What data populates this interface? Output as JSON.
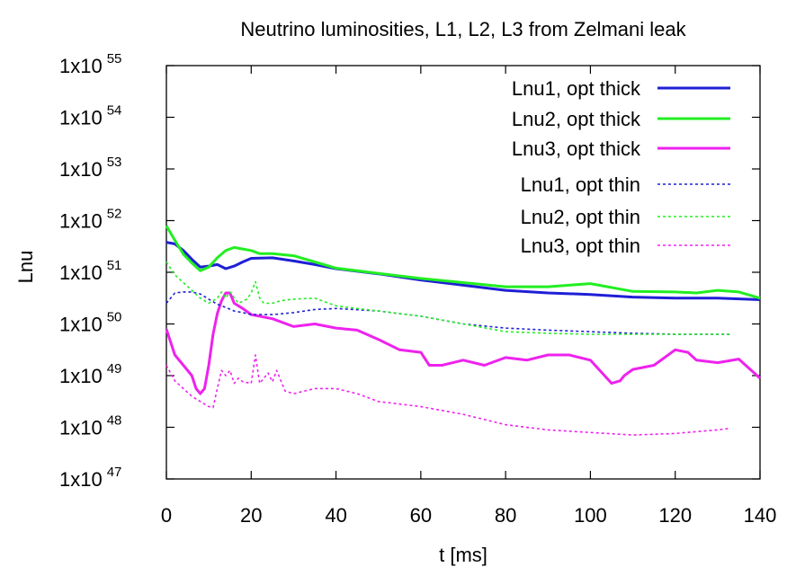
{
  "chart_data": {
    "type": "line",
    "title": "Neutrino luminosities, L1, L2, L3 from Zelmani leak",
    "xlabel": "t [ms]",
    "ylabel": "Lnu",
    "xlim": [
      0,
      140
    ],
    "ylim_log10": [
      47,
      55
    ],
    "y_scale": "log",
    "x_ticks": [
      0,
      20,
      40,
      60,
      80,
      100,
      120,
      140
    ],
    "y_ticks": [
      {
        "base": "1x10",
        "exp": "47"
      },
      {
        "base": "1x10",
        "exp": "48"
      },
      {
        "base": "1x10",
        "exp": "49"
      },
      {
        "base": "1x10",
        "exp": "50"
      },
      {
        "base": "1x10",
        "exp": "51"
      },
      {
        "base": "1x10",
        "exp": "52"
      },
      {
        "base": "1x10",
        "exp": "53"
      },
      {
        "base": "1x10",
        "exp": "54"
      },
      {
        "base": "1x10",
        "exp": "55"
      }
    ],
    "legend_position": "top-right",
    "grid": false,
    "series": [
      {
        "name": "Lnu1, opt thick",
        "color": "#1f1fd6",
        "style": "solid",
        "x": [
          0,
          2,
          4,
          6,
          8,
          10,
          12,
          14,
          16,
          18,
          20,
          25,
          30,
          35,
          40,
          50,
          60,
          70,
          80,
          90,
          100,
          110,
          120,
          130,
          140
        ],
        "log10_y": [
          51.58,
          51.55,
          51.42,
          51.25,
          51.1,
          51.12,
          51.15,
          51.07,
          51.12,
          51.2,
          51.27,
          51.28,
          51.22,
          51.15,
          51.07,
          50.97,
          50.85,
          50.75,
          50.65,
          50.6,
          50.57,
          50.52,
          50.5,
          50.5,
          50.47
        ]
      },
      {
        "name": "Lnu2, opt thick",
        "color": "#22ee22",
        "style": "solid",
        "x": [
          0,
          2,
          4,
          6,
          8,
          10,
          12,
          14,
          16,
          18,
          20,
          22,
          25,
          30,
          35,
          40,
          50,
          60,
          70,
          80,
          90,
          100,
          110,
          120,
          125,
          130,
          135,
          140
        ],
        "log10_y": [
          51.9,
          51.62,
          51.35,
          51.18,
          51.03,
          51.1,
          51.28,
          51.42,
          51.48,
          51.45,
          51.42,
          51.36,
          51.36,
          51.32,
          51.2,
          51.08,
          50.98,
          50.88,
          50.8,
          50.72,
          50.72,
          50.78,
          50.63,
          50.62,
          50.6,
          50.65,
          50.62,
          50.5
        ]
      },
      {
        "name": "Lnu3, opt thick",
        "color": "#ee22ee",
        "style": "solid",
        "x": [
          0,
          2,
          4,
          6,
          7,
          8,
          9,
          10,
          11,
          12,
          13,
          14,
          15,
          16,
          18,
          20,
          25,
          30,
          35,
          40,
          45,
          50,
          55,
          60,
          62,
          65,
          70,
          75,
          80,
          85,
          90,
          95,
          100,
          105,
          107,
          108,
          110,
          115,
          120,
          123,
          125,
          130,
          135,
          140
        ],
        "log10_y": [
          49.9,
          49.4,
          49.2,
          49.0,
          48.75,
          48.65,
          48.75,
          49.2,
          49.8,
          50.2,
          50.45,
          50.6,
          50.6,
          50.4,
          50.3,
          50.18,
          50.1,
          49.95,
          50.0,
          49.92,
          49.88,
          49.7,
          49.5,
          49.45,
          49.2,
          49.2,
          49.3,
          49.2,
          49.35,
          49.3,
          49.4,
          49.4,
          49.3,
          48.85,
          48.9,
          49.0,
          49.12,
          49.2,
          49.5,
          49.45,
          49.3,
          49.25,
          49.32,
          48.95
        ]
      },
      {
        "name": "Lnu1, opt thin",
        "color": "#1f1fd6",
        "style": "dotted",
        "x": [
          0,
          2,
          4,
          6,
          8,
          10,
          12,
          14,
          16,
          18,
          20,
          25,
          30,
          35,
          40,
          50,
          60,
          70,
          80,
          90,
          100,
          110,
          120,
          130,
          133
        ],
        "log10_y": [
          50.4,
          50.6,
          50.62,
          50.62,
          50.58,
          50.48,
          50.38,
          50.32,
          50.25,
          50.22,
          50.18,
          50.18,
          50.22,
          50.28,
          50.3,
          50.25,
          50.15,
          50.0,
          49.92,
          49.88,
          49.85,
          49.82,
          49.8,
          49.8,
          49.8
        ]
      },
      {
        "name": "Lnu2, opt thin",
        "color": "#22ee22",
        "style": "dotted",
        "x": [
          0,
          2,
          4,
          6,
          8,
          10,
          12,
          13,
          14,
          15,
          17,
          19,
          20,
          21,
          22,
          23,
          25,
          27,
          30,
          35,
          40,
          45,
          50,
          60,
          70,
          80,
          90,
          100,
          110,
          120,
          130,
          133
        ],
        "log10_y": [
          51.2,
          50.95,
          50.8,
          50.65,
          50.5,
          50.4,
          50.5,
          50.62,
          50.5,
          50.62,
          50.4,
          50.48,
          50.6,
          50.82,
          50.5,
          50.4,
          50.4,
          50.45,
          50.48,
          50.5,
          50.35,
          50.3,
          50.25,
          50.15,
          50.0,
          49.85,
          49.82,
          49.8,
          49.8,
          49.8,
          49.8,
          49.8
        ]
      },
      {
        "name": "Lnu3, opt thin",
        "color": "#ee22ee",
        "style": "dotted",
        "x": [
          0,
          2,
          4,
          6,
          8,
          10,
          11,
          12,
          13,
          14,
          15,
          16,
          17,
          18,
          20,
          21,
          22,
          23,
          24,
          25,
          26,
          28,
          30,
          35,
          40,
          45,
          50,
          60,
          70,
          80,
          90,
          100,
          110,
          120,
          130,
          133
        ],
        "log10_y": [
          49.2,
          48.9,
          48.75,
          48.6,
          48.5,
          48.4,
          48.38,
          48.75,
          49.1,
          49.0,
          49.1,
          48.85,
          48.95,
          48.88,
          48.85,
          49.4,
          48.85,
          48.95,
          49.05,
          48.88,
          49.1,
          48.7,
          48.65,
          48.75,
          48.75,
          48.65,
          48.5,
          48.4,
          48.25,
          48.05,
          47.95,
          47.9,
          47.85,
          47.88,
          47.95,
          47.98
        ]
      }
    ]
  }
}
